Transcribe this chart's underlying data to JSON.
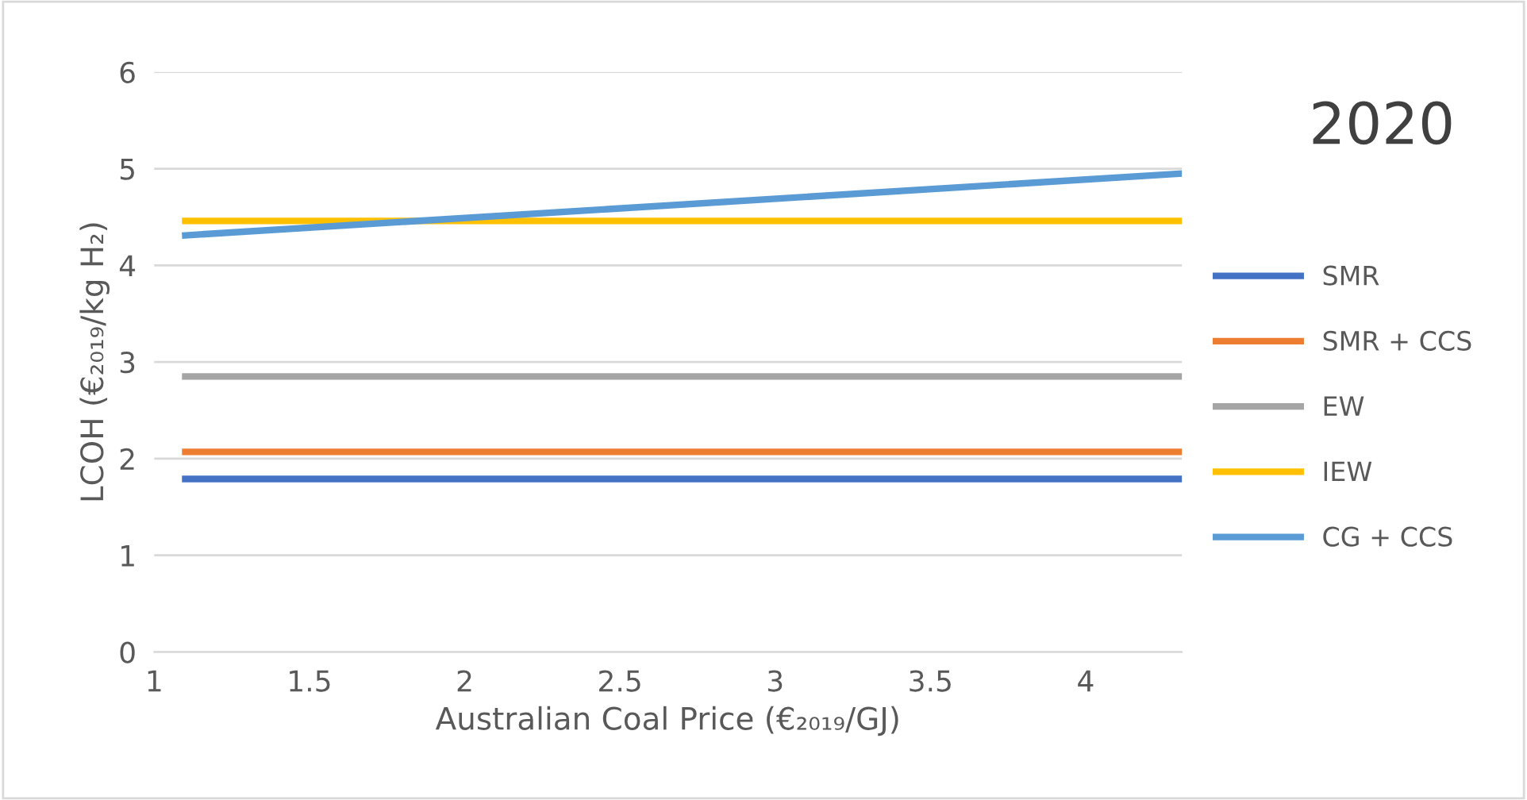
{
  "chart_data": {
    "type": "line",
    "title": "2020",
    "xlabel": "Australian Coal Price (€₂₀₁₉/GJ)",
    "ylabel": "LCOH (€₂₀₁₉/kg H₂)",
    "x": [
      1.1,
      4.31
    ],
    "series": [
      {
        "name": "SMR",
        "color": "#4472c4",
        "values": [
          1.79,
          1.79
        ]
      },
      {
        "name": "SMR + CCS",
        "color": "#ed7d31",
        "values": [
          2.07,
          2.07
        ]
      },
      {
        "name": "EW",
        "color": "#a5a5a5",
        "values": [
          2.85,
          2.85
        ]
      },
      {
        "name": "IEW",
        "color": "#ffc000",
        "values": [
          4.46,
          4.46
        ]
      },
      {
        "name": "CG + CCS",
        "color": "#5b9bd5",
        "values": [
          4.31,
          4.95
        ]
      }
    ],
    "xlim": [
      1,
      4.31
    ],
    "xticks": [
      1,
      1.5,
      2,
      2.5,
      3,
      3.5,
      4
    ],
    "ylim": [
      0,
      6
    ],
    "yticks": [
      0,
      1,
      2,
      3,
      4,
      5,
      6
    ],
    "grid": "y",
    "legend": "right",
    "marker": "none",
    "line_style": "solid"
  }
}
